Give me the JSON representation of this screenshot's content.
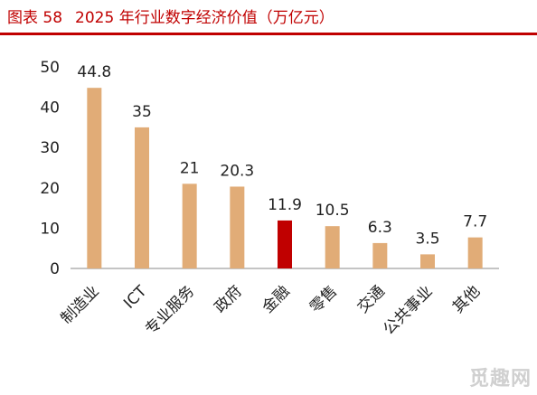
{
  "header": {
    "figure_number": "图表 58",
    "title": "2025 年行业数字经济价值（万亿元）"
  },
  "watermark": "觅趣网",
  "colors": {
    "title_red": "#c00000",
    "bar_default": "#e1ac77",
    "bar_highlight": "#c00000",
    "axis": "#888888"
  },
  "chart_data": {
    "type": "bar",
    "title": "2025 年行业数字经济价值（万亿元）",
    "categories": [
      "制造业",
      "ICT",
      "专业服务",
      "政府",
      "金融",
      "零售",
      "交通",
      "公共事业",
      "其他"
    ],
    "values": [
      44.8,
      35,
      21,
      20.3,
      11.9,
      10.5,
      6.3,
      3.5,
      7.7
    ],
    "data_labels": [
      "44.8",
      "35",
      "21",
      "20.3",
      "11.9",
      "10.5",
      "6.3",
      "3.5",
      "7.7"
    ],
    "highlight_category": "金融",
    "ylim": [
      0,
      50
    ],
    "yticks": [
      0,
      10,
      20,
      30,
      40,
      50
    ],
    "grid": false,
    "legend": "none"
  }
}
